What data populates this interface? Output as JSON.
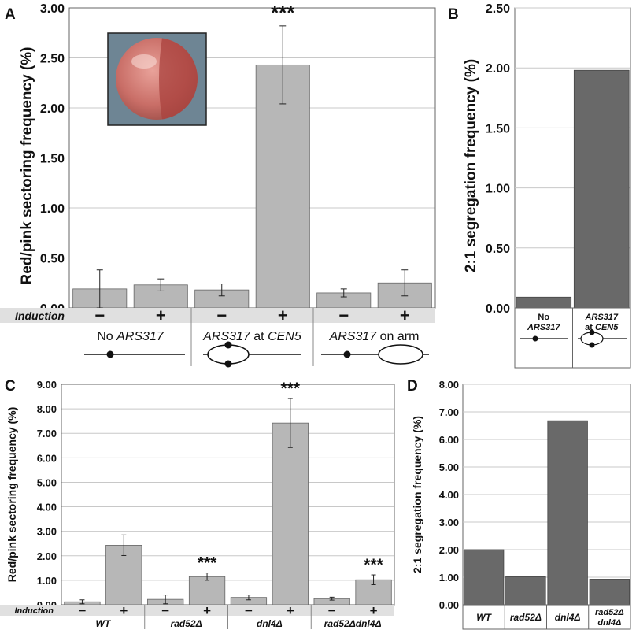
{
  "chart_data": [
    {
      "panel": "A",
      "type": "bar",
      "ylabel": "Red/pink sectoring frequency (%)",
      "ylim": [
        0,
        3.0
      ],
      "yticks": [
        "0.00",
        "0.50",
        "1.00",
        "1.50",
        "2.00",
        "2.50",
        "3.00"
      ],
      "row_label": "Induction",
      "signs": [
        "−",
        "+",
        "−",
        "+",
        "−",
        "+"
      ],
      "groups": [
        {
          "pre": "No ",
          "italic": "ARS317",
          "post": ""
        },
        {
          "pre": "",
          "italic": "ARS317",
          "post": " at ",
          "italic2": "CEN5"
        },
        {
          "pre": "",
          "italic": "ARS317",
          "post": " on arm"
        }
      ],
      "values": [
        0.19,
        0.23,
        0.18,
        2.43,
        0.15,
        0.25
      ],
      "errors": [
        0.19,
        0.06,
        0.06,
        0.39,
        0.04,
        0.13
      ],
      "significance": [
        "",
        "",
        "",
        "***",
        "",
        ""
      ],
      "colors": {
        "bar": "#b7b7b7",
        "row": "#e0e0e0"
      }
    },
    {
      "panel": "B",
      "type": "bar",
      "ylabel": "2:1 segregation frequency (%)",
      "ylim": [
        0,
        2.5
      ],
      "yticks": [
        "0.00",
        "0.50",
        "1.00",
        "1.50",
        "2.00",
        "2.50"
      ],
      "categories": [
        [
          "No",
          "ARS317"
        ],
        [
          "ARS317",
          "at CEN5"
        ]
      ],
      "values": [
        0.09,
        1.98
      ],
      "colors": {
        "bar": "#696969"
      }
    },
    {
      "panel": "C",
      "type": "bar",
      "ylabel": "Red/pink sectoring frequency (%)",
      "ylim": [
        0,
        9.0
      ],
      "yticks": [
        "0.00",
        "1.00",
        "2.00",
        "3.00",
        "4.00",
        "5.00",
        "6.00",
        "7.00",
        "8.00",
        "9.00"
      ],
      "row_label": "Induction",
      "signs": [
        "−",
        "+",
        "−",
        "+",
        "−",
        "+",
        "−",
        "+"
      ],
      "groups": [
        "WT",
        "rad52Δ",
        "dnl4Δ",
        "rad52Δdnl4Δ"
      ],
      "values": [
        0.12,
        2.43,
        0.22,
        1.15,
        0.3,
        7.42,
        0.25,
        1.02
      ],
      "errors": [
        0.08,
        0.42,
        0.18,
        0.15,
        0.1,
        1.0,
        0.06,
        0.2
      ],
      "significance": [
        "",
        "",
        "",
        "***",
        "",
        "***",
        "",
        "***"
      ],
      "colors": {
        "bar": "#b7b7b7",
        "row": "#e0e0e0"
      }
    },
    {
      "panel": "D",
      "type": "bar",
      "ylabel": "2:1 segregation frequency (%)",
      "ylim": [
        0,
        8.0
      ],
      "yticks": [
        "0.00",
        "1.00",
        "2.00",
        "3.00",
        "4.00",
        "5.00",
        "6.00",
        "7.00",
        "8.00"
      ],
      "categories": [
        [
          "WT"
        ],
        [
          "rad52Δ"
        ],
        [
          "dnl4Δ"
        ],
        [
          "rad52Δ",
          "dnl4Δ"
        ]
      ],
      "values": [
        2.0,
        1.02,
        6.68,
        0.93
      ],
      "colors": {
        "bar": "#696969"
      }
    }
  ]
}
